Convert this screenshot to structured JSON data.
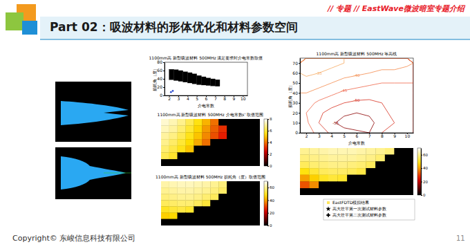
{
  "slide": {
    "tag": "// 专题 // EastWave微波暗室专题介绍",
    "title": "Part 02：吸波材料的形体优化和材料参数空间",
    "copyright": "Copyright© 东峻信息科技有限公司",
    "page": 11
  },
  "chart_data": [
    {
      "type": "range",
      "title": "1100mm高 新型吸波材料 500MHz 满足要求时介电常数取值",
      "x_label": "介电常数",
      "y_label": "损耗角（度）",
      "x": [
        2,
        2.5,
        3,
        3.5,
        4,
        4.5,
        5,
        5.5,
        6,
        6.5,
        7
      ],
      "high": [
        63,
        62,
        60,
        57,
        55,
        52,
        48,
        45,
        42,
        40,
        38
      ],
      "low": [
        38,
        36,
        34,
        32,
        30,
        28,
        26,
        25,
        24,
        23,
        22
      ],
      "color": "#000000",
      "points": {
        "x": [
          2.2,
          2.4
        ],
        "y": [
          8,
          11
        ],
        "color": "#3050d0",
        "marker": "dot"
      },
      "xlim": [
        1.5,
        10.5
      ],
      "xticks": [
        2,
        3,
        4,
        5,
        6,
        7,
        8,
        9,
        10
      ],
      "ylim": [
        0,
        80
      ],
      "yticks": [
        0,
        20,
        40,
        60,
        80
      ]
    },
    {
      "type": "heatmap",
      "title": "1100mm高 新型吸波材料 500MHz 介电常数ε' 取值范围",
      "tick_labels": false,
      "cells": [
        [
          7.5,
          7.2,
          6.8,
          6.2,
          5.5,
          4.8,
          4,
          0,
          0,
          0,
          0,
          0
        ],
        [
          7.3,
          7,
          6.5,
          5.9,
          5.2,
          4.5,
          3.8,
          3.2,
          0,
          0,
          0,
          0
        ],
        [
          7,
          6.7,
          6.2,
          5.6,
          5,
          4.3,
          3.6,
          3,
          0,
          0,
          0,
          0
        ],
        [
          6.8,
          6.4,
          5.9,
          5.3,
          4.7,
          4,
          0,
          0,
          0,
          0,
          0,
          0
        ],
        [
          6.5,
          6.1,
          5.6,
          5,
          0,
          0,
          0,
          0,
          0,
          0,
          0,
          0
        ],
        [
          6.2,
          5.8,
          0,
          0,
          0,
          0,
          0,
          0,
          0,
          0,
          0,
          0
        ],
        [
          0,
          0,
          0,
          0,
          0,
          0,
          0,
          0,
          0,
          0,
          0,
          0
        ]
      ],
      "colorbar_lim": [
        0,
        8
      ],
      "colorbar_ticks": [
        0,
        2,
        4,
        6,
        8
      ]
    },
    {
      "type": "heatmap",
      "title": "1100mm高 新型吸波材料 500MHz 损耗角（度）取值范围",
      "tick_labels": false,
      "cells": [
        [
          62,
          63,
          64,
          64,
          63,
          62,
          60,
          58,
          0,
          0,
          0,
          0
        ],
        [
          60,
          61,
          62,
          62,
          61,
          60,
          58,
          56,
          0,
          0,
          0,
          0
        ],
        [
          58,
          59,
          60,
          60,
          59,
          57,
          55,
          0,
          0,
          0,
          0,
          0
        ],
        [
          55,
          56,
          57,
          57,
          55,
          52,
          0,
          0,
          0,
          0,
          0,
          0
        ],
        [
          50,
          52,
          53,
          51,
          0,
          0,
          0,
          0,
          0,
          0,
          0,
          0
        ],
        [
          45,
          46,
          0,
          0,
          0,
          0,
          0,
          0,
          0,
          0,
          0,
          0
        ],
        [
          0,
          0,
          0,
          0,
          0,
          0,
          0,
          0,
          0,
          0,
          0,
          0
        ]
      ],
      "colorbar_lim": [
        0,
        70
      ],
      "colorbar_ticks": [
        0,
        20,
        40,
        60
      ]
    },
    {
      "type": "contour",
      "title": "1100mm高 新型吸波材料 500MHz 等高线",
      "x_label": "介电常数",
      "y_label": "损耗角（度）",
      "grid_x": [
        2,
        3,
        4,
        5,
        6,
        7,
        8,
        9,
        10
      ],
      "grid_y": [
        0,
        10,
        20,
        30,
        40,
        50,
        60,
        70
      ],
      "z": [
        [
          -42,
          -47,
          -51,
          -53,
          -54,
          -55,
          -50,
          -48,
          -46
        ],
        [
          -44,
          -50,
          -54,
          -57,
          -58,
          -57,
          -52,
          -50,
          -48
        ],
        [
          -45,
          -49,
          -52,
          -54,
          -55,
          -54,
          -51,
          -49,
          -47
        ],
        [
          -43,
          -46,
          -48,
          -50,
          -51,
          -51,
          -50,
          -48,
          -46
        ],
        [
          -40,
          -42,
          -44,
          -46,
          -47,
          -48,
          -48,
          -47,
          -46
        ],
        [
          -37,
          -38,
          -40,
          -42,
          -43,
          -44,
          -45,
          -45,
          -45
        ],
        [
          -34,
          -35,
          -36,
          -38,
          -39,
          -40,
          -41,
          -41,
          -42
        ],
        [
          -32,
          -33,
          -34,
          -35,
          -36,
          -37,
          -38,
          -38,
          -39
        ]
      ],
      "thresholds": [
        -55,
        -50,
        -45,
        -40,
        -35
      ],
      "colors": [
        "#8b0000",
        "#d7301f",
        "#ef6548",
        "#f4894a",
        "#f6a860"
      ],
      "xlim": [
        1.5,
        10.5
      ],
      "xticks": [
        2,
        3,
        4,
        5,
        6,
        7,
        8,
        9,
        10
      ],
      "ylim": [
        0,
        75
      ],
      "yticks": [
        0,
        10,
        20,
        30,
        40,
        50,
        60,
        70
      ]
    },
    {
      "type": "heatmap",
      "tick_labels": false,
      "cells": [
        [
          60,
          61,
          62,
          63,
          63,
          63,
          62,
          61,
          60,
          58,
          0,
          0
        ],
        [
          58,
          59,
          60,
          61,
          61,
          61,
          60,
          59,
          57,
          0,
          0,
          0
        ],
        [
          55,
          57,
          58,
          59,
          59,
          58,
          57,
          55,
          0,
          0,
          0,
          0
        ],
        [
          48,
          52,
          55,
          56,
          56,
          55,
          53,
          0,
          0,
          0,
          0,
          0
        ],
        [
          40,
          45,
          50,
          52,
          51,
          0,
          0,
          0,
          0,
          0,
          0,
          0
        ],
        [
          32,
          38,
          0,
          0,
          0,
          0,
          0,
          0,
          0,
          0,
          0,
          0
        ],
        [
          0,
          0,
          0,
          0,
          0,
          0,
          0,
          0,
          0,
          0,
          0,
          0
        ]
      ],
      "colorbar_lim": [
        0,
        70
      ],
      "colorbar_ticks": [
        0,
        20,
        40,
        60
      ],
      "legend_entries": [
        {
          "name": "EastFDTD模拟结果",
          "marker": "square",
          "color": "#ffe65c"
        },
        {
          "name": "高大壮平第一次测试材料参数",
          "marker": "star",
          "color": "#000000"
        },
        {
          "name": "高大壮平第二次测试材料参数",
          "marker": "plus",
          "color": "#000000"
        }
      ]
    }
  ]
}
